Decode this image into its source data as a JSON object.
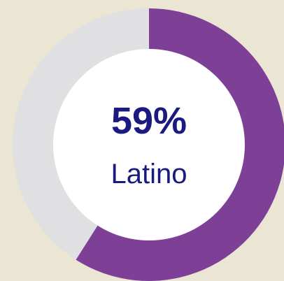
{
  "chart_data": {
    "type": "donut",
    "label": "Latino",
    "value": 59,
    "value_label": "59%",
    "color": "#7e3f97",
    "track_color": "#e0e0e2"
  }
}
